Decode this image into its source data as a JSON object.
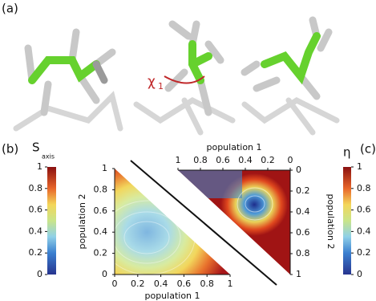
{
  "panel_labels": [
    "(a)",
    "(b)",
    "(c)"
  ],
  "annotation": {
    "symbol": "χ",
    "subscript": "1"
  },
  "colorbar_left": {
    "title": "S",
    "subscript": "axis",
    "lim": [
      0,
      1
    ],
    "ticks": [
      0,
      0.2,
      0.4,
      0.6,
      0.8,
      1
    ]
  },
  "colorbar_right": {
    "title": "η",
    "lim": [
      0,
      1
    ],
    "ticks": [
      0,
      0.2,
      0.4,
      0.6,
      0.8,
      1
    ]
  },
  "plot_b": {
    "xlabel": "population 1",
    "ylabel": "population 2",
    "xlim": [
      0,
      1
    ],
    "ylim": [
      0,
      1
    ],
    "xticks": [
      0,
      0.2,
      0.4,
      0.6,
      0.8,
      1
    ],
    "yticks": [
      0,
      0.2,
      0.4,
      0.6,
      0.8,
      1
    ]
  },
  "plot_c": {
    "xlabel": "population 1",
    "ylabel": "population 2",
    "xlim": [
      1,
      0
    ],
    "ylim": [
      1,
      0
    ],
    "xticks": [
      1,
      0.8,
      0.6,
      0.4,
      0.2,
      0
    ],
    "yticks": [
      0,
      0.2,
      0.4,
      0.6,
      0.8,
      1
    ]
  }
}
